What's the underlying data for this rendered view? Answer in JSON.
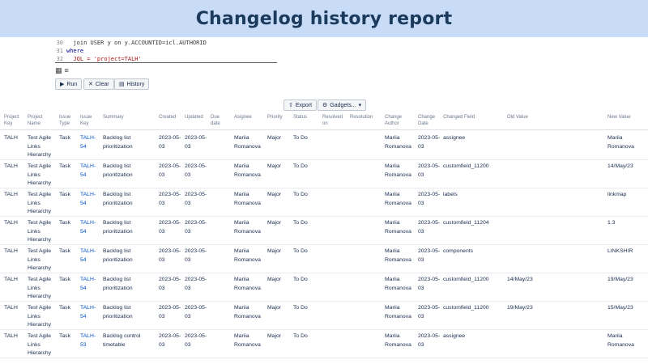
{
  "banner": {
    "title": "Changelog history report"
  },
  "code": {
    "lines": [
      {
        "num": "30",
        "text": "  join USER y on y.ACCOUNTID=icl.AUTHORID"
      },
      {
        "num": "31",
        "text": "where"
      },
      {
        "num": "32",
        "text": "  JQL = 'project=TALH'"
      }
    ]
  },
  "toolbar": {
    "run_label": "Run",
    "clear_label": "Clear",
    "history_label": "History",
    "export_label": "Export",
    "gadgets_label": "Gadgets..."
  },
  "table": {
    "headers": [
      "Project Key",
      "Project Name",
      "Issue Type",
      "Issue Key",
      "Summary",
      "Created",
      "Updated",
      "Due date",
      "Asignee",
      "Priority",
      "Status",
      "Resolved on",
      "Resolution",
      "Change Author",
      "Change Date",
      "Changed Field",
      "Old Value",
      "New Value"
    ],
    "rows": [
      [
        "TALH",
        "Test Agile Links Hierarchy",
        "Task",
        "TALH-54",
        "Backlog list prioritization",
        "2023-05-03",
        "2023-05-03",
        "",
        "Mariia Romanova",
        "Major",
        "To Do",
        "",
        "",
        "Mariia Romanova",
        "2023-05-03",
        "assignee",
        "",
        "Mariia Romanova"
      ],
      [
        "TALH",
        "Test Agile Links Hierarchy",
        "Task",
        "TALH-54",
        "Backlog list prioritization",
        "2023-05-03",
        "2023-05-03",
        "",
        "Mariia Romanova",
        "Major",
        "To Do",
        "",
        "",
        "Mariia Romanova",
        "2023-05-03",
        "customfield_11200",
        "",
        "14/May/23"
      ],
      [
        "TALH",
        "Test Agile Links Hierarchy",
        "Task",
        "TALH-54",
        "Backlog list prioritization",
        "2023-05-03",
        "2023-05-03",
        "",
        "Mariia Romanova",
        "Major",
        "To Do",
        "",
        "",
        "Mariia Romanova",
        "2023-05-03",
        "labels",
        "",
        "linkmap"
      ],
      [
        "TALH",
        "Test Agile Links Hierarchy",
        "Task",
        "TALH-54",
        "Backlog list prioritization",
        "2023-05-03",
        "2023-05-03",
        "",
        "Mariia Romanova",
        "Major",
        "To Do",
        "",
        "",
        "Mariia Romanova",
        "2023-05-03",
        "customfield_11204",
        "",
        "1.3"
      ],
      [
        "TALH",
        "Test Agile Links Hierarchy",
        "Task",
        "TALH-54",
        "Backlog list prioritization",
        "2023-05-03",
        "2023-05-03",
        "",
        "Mariia Romanova",
        "Major",
        "To Do",
        "",
        "",
        "Mariia Romanova",
        "2023-05-03",
        "components",
        "",
        "LINKSHIR"
      ],
      [
        "TALH",
        "Test Agile Links Hierarchy",
        "Task",
        "TALH-54",
        "Backlog list prioritization",
        "2023-05-03",
        "2023-05-03",
        "",
        "Mariia Romanova",
        "Major",
        "To Do",
        "",
        "",
        "Mariia Romanova",
        "2023-05-03",
        "customfield_11200",
        "14/May/23",
        "19/May/23"
      ],
      [
        "TALH",
        "Test Agile Links Hierarchy",
        "Task",
        "TALH-54",
        "Backlog list prioritization",
        "2023-05-03",
        "2023-05-03",
        "",
        "Mariia Romanova",
        "Major",
        "To Do",
        "",
        "",
        "Mariia Romanova",
        "2023-05-03",
        "customfield_11200",
        "19/May/23",
        "15/May/23"
      ],
      [
        "TALH",
        "Test Agile Links Hierarchy",
        "Task",
        "TALH-53",
        "Backlog control timetable",
        "2023-05-03",
        "2023-05-03",
        "",
        "Mariia Romanova",
        "Major",
        "To Do",
        "",
        "",
        "Mariia Romanova",
        "2023-05-03",
        "assignee",
        "",
        "Mariia Romanova"
      ]
    ]
  }
}
